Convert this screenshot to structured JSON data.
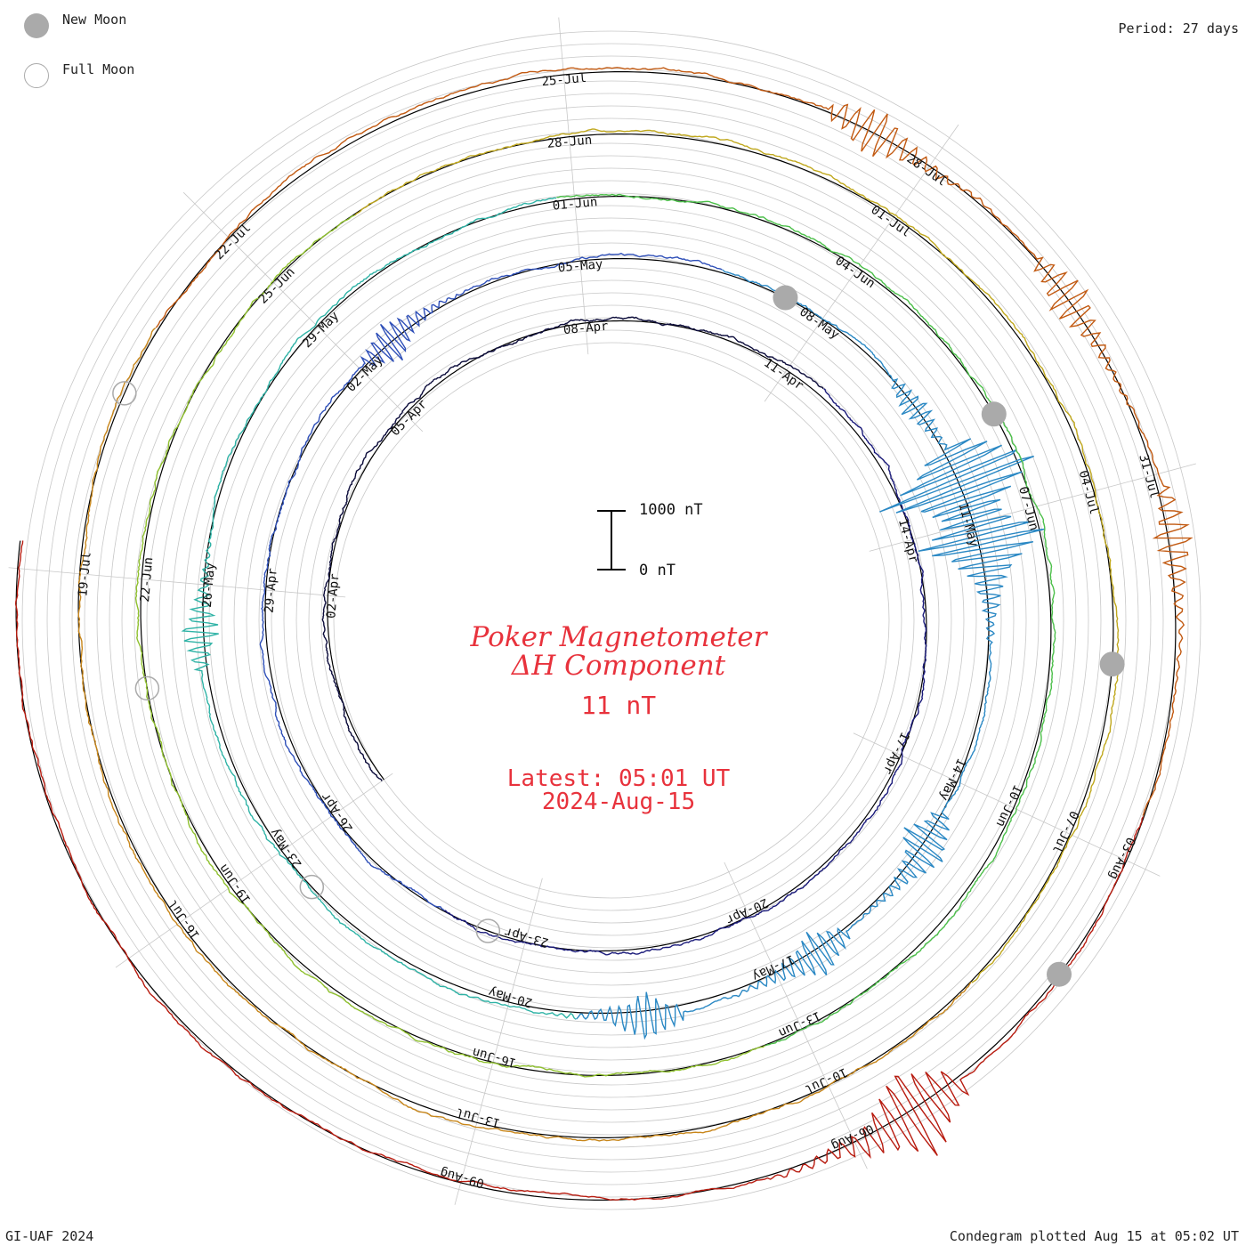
{
  "legend": {
    "new_moon": "New Moon",
    "full_moon": "Full Moon"
  },
  "period": "Period: 27 days",
  "credit": "GI-UAF 2024",
  "plotted": "Condegram plotted Aug 15 at 05:02 UT",
  "title": {
    "line1": "Poker Magnetometer",
    "line2": "ΔH Component",
    "baseline": "11 nT",
    "latest": "Latest: 05:01 UT",
    "date": "2024-Aug-15"
  },
  "scale": {
    "top": "1000 nT",
    "bottom": "0 nT"
  },
  "colors": {
    "grid": "#c8c8c8",
    "baseline": "#000000",
    "title": "#e8323c",
    "moon": "#aaaaaa"
  },
  "chart_data": {
    "type": "line",
    "period_days": 27,
    "start_date": "2024-03-30",
    "end_date": "2024-08-15",
    "scale_nT": [
      0,
      1000
    ],
    "series_colors": [
      "#0b0b3a",
      "#1a1a7a",
      "#2e4fb8",
      "#2a88c4",
      "#2fb3a6",
      "#4cbf4a",
      "#8fc02e",
      "#c0a81e",
      "#c8861a",
      "#c25a12",
      "#b81c10"
    ],
    "date_labels": [
      {
        "label": "02-Apr",
        "day": 3
      },
      {
        "label": "05-Apr",
        "day": 6
      },
      {
        "label": "08-Apr",
        "day": 9
      },
      {
        "label": "11-Apr",
        "day": 12
      },
      {
        "label": "14-Apr",
        "day": 15
      },
      {
        "label": "17-Apr",
        "day": 18
      },
      {
        "label": "20-Apr",
        "day": 21
      },
      {
        "label": "23-Apr",
        "day": 24
      },
      {
        "label": "26-Apr",
        "day": 27
      },
      {
        "label": "29-Apr",
        "day": 30
      },
      {
        "label": "02-May",
        "day": 33
      },
      {
        "label": "05-May",
        "day": 36
      },
      {
        "label": "08-May",
        "day": 39
      },
      {
        "label": "11-May",
        "day": 42
      },
      {
        "label": "14-May",
        "day": 45
      },
      {
        "label": "17-May",
        "day": 48
      },
      {
        "label": "20-May",
        "day": 51
      },
      {
        "label": "23-May",
        "day": 54
      },
      {
        "label": "26-May",
        "day": 57
      },
      {
        "label": "29-May",
        "day": 60
      },
      {
        "label": "01-Jun",
        "day": 63
      },
      {
        "label": "04-Jun",
        "day": 66
      },
      {
        "label": "07-Jun",
        "day": 69
      },
      {
        "label": "10-Jun",
        "day": 72
      },
      {
        "label": "13-Jun",
        "day": 75
      },
      {
        "label": "16-Jun",
        "day": 78
      },
      {
        "label": "19-Jun",
        "day": 81
      },
      {
        "label": "22-Jun",
        "day": 84
      },
      {
        "label": "25-Jun",
        "day": 87
      },
      {
        "label": "28-Jun",
        "day": 90
      },
      {
        "label": "01-Jul",
        "day": 93
      },
      {
        "label": "04-Jul",
        "day": 96
      },
      {
        "label": "07-Jul",
        "day": 99
      },
      {
        "label": "10-Jul",
        "day": 102
      },
      {
        "label": "13-Jul",
        "day": 105
      },
      {
        "label": "16-Jul",
        "day": 108
      },
      {
        "label": "19-Jul",
        "day": 111
      },
      {
        "label": "22-Jul",
        "day": 114
      },
      {
        "label": "25-Jul",
        "day": 117
      },
      {
        "label": "28-Jul",
        "day": 120
      },
      {
        "label": "31-Jul",
        "day": 123
      },
      {
        "label": "03-Aug",
        "day": 126
      },
      {
        "label": "06-Aug",
        "day": 129
      },
      {
        "label": "09-Aug",
        "day": 132
      }
    ],
    "new_moons": [
      38.5,
      68,
      97.5,
      127
    ],
    "full_moons": [
      24.5,
      53.5,
      83,
      112.5
    ],
    "disturbances": [
      {
        "day": 33.5,
        "amp": 400
      },
      {
        "day": 40.5,
        "amp": 250
      },
      {
        "day": 41.5,
        "amp": 1600
      },
      {
        "day": 42.2,
        "amp": 1300
      },
      {
        "day": 45.8,
        "amp": 500
      },
      {
        "day": 47.5,
        "amp": 450
      },
      {
        "day": 49.5,
        "amp": 450
      },
      {
        "day": 56.5,
        "amp": 350
      },
      {
        "day": 128.5,
        "amp": 900
      },
      {
        "day": 119.5,
        "amp": 450
      },
      {
        "day": 121.5,
        "amp": 400
      },
      {
        "day": 123.5,
        "amp": 350
      }
    ]
  }
}
